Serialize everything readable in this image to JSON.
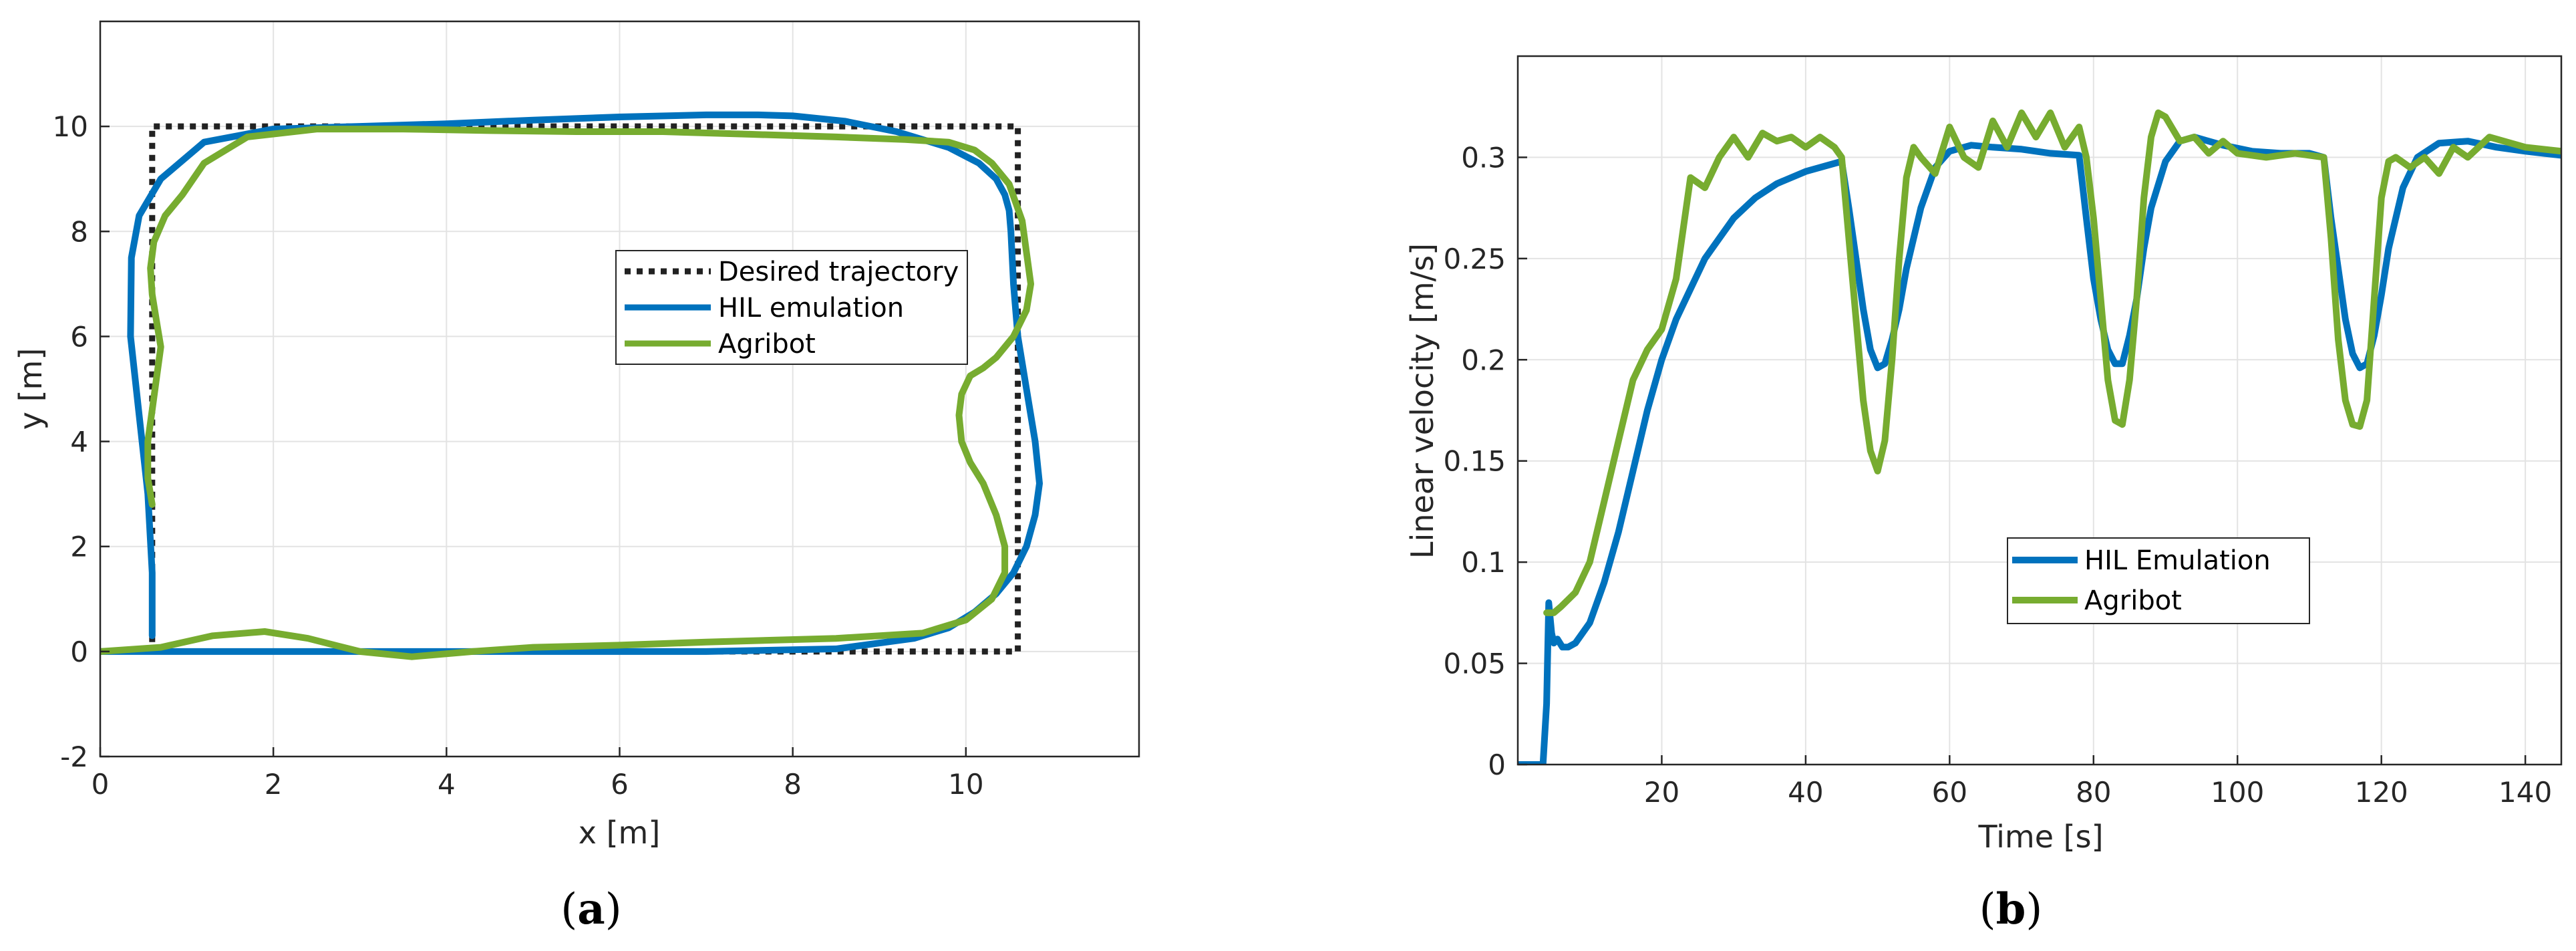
{
  "colors": {
    "desired": "#222222",
    "hil": "#0072bd",
    "agribot": "#77ac30",
    "grid": "#e3e3e3",
    "axis": "#262626"
  },
  "chart_data": [
    {
      "type": "line",
      "panel": "a",
      "caption_letter": "a",
      "xlabel": "x [m]",
      "ylabel": "y [m]",
      "xlim": [
        0,
        12
      ],
      "ylim": [
        -2,
        12
      ],
      "xticks": [
        0,
        2,
        4,
        6,
        8,
        10
      ],
      "yticks": [
        -2,
        0,
        2,
        4,
        6,
        8,
        10
      ],
      "grid": true,
      "legend_position": "center-right",
      "series": [
        {
          "name": "Desired trajectory",
          "style": "dotted",
          "color": "#222222",
          "x": [
            0.6,
            10.6,
            10.6,
            0.6,
            0.6
          ],
          "y": [
            0,
            0,
            10,
            10,
            0
          ]
        },
        {
          "name": "HIL emulation",
          "style": "solid",
          "color": "#0072bd",
          "x": [
            0.6,
            0.6,
            0.55,
            0.45,
            0.35,
            0.36,
            0.45,
            0.7,
            1.2,
            2.0,
            3.0,
            4.0,
            5.0,
            6.0,
            7.0,
            7.6,
            8.0,
            8.6,
            9.2,
            9.8,
            10.15,
            10.35,
            10.45,
            10.5,
            10.52,
            10.55,
            10.6,
            10.7,
            10.8,
            10.85,
            10.8,
            10.7,
            10.55,
            10.35,
            10.1,
            9.8,
            9.4,
            8.5,
            7.0,
            5.0,
            3.0,
            1.0,
            0.0
          ],
          "y": [
            0.3,
            1.5,
            3.0,
            4.5,
            6.0,
            7.5,
            8.3,
            9.0,
            9.7,
            9.95,
            10.0,
            10.05,
            10.12,
            10.18,
            10.22,
            10.22,
            10.2,
            10.1,
            9.9,
            9.6,
            9.3,
            9.0,
            8.7,
            8.4,
            8.0,
            7.0,
            6.0,
            5.0,
            4.0,
            3.2,
            2.6,
            2.0,
            1.5,
            1.1,
            0.75,
            0.45,
            0.25,
            0.05,
            0.0,
            0.0,
            0.0,
            0.0,
            0.0
          ]
        },
        {
          "name": "Agribot",
          "style": "solid",
          "color": "#77ac30",
          "x": [
            0.6,
            0.55,
            0.55,
            0.6,
            0.65,
            0.7,
            0.65,
            0.6,
            0.58,
            0.62,
            0.75,
            0.95,
            1.2,
            1.7,
            2.5,
            3.5,
            4.5,
            5.5,
            6.5,
            7.5,
            8.5,
            9.3,
            9.8,
            10.1,
            10.3,
            10.5,
            10.65,
            10.75,
            10.7,
            10.55,
            10.35,
            10.2,
            10.05,
            9.95,
            9.92,
            9.95,
            10.05,
            10.2,
            10.35,
            10.45,
            10.45,
            10.3,
            10.0,
            9.5,
            8.5,
            7.0,
            6.0,
            5.0,
            4.3,
            3.6,
            3.0,
            2.4,
            1.9,
            1.3,
            0.7,
            0.0
          ],
          "y": [
            2.8,
            3.3,
            4.0,
            4.6,
            5.2,
            5.8,
            6.3,
            6.8,
            7.3,
            7.8,
            8.3,
            8.7,
            9.3,
            9.8,
            9.95,
            9.95,
            9.92,
            9.9,
            9.9,
            9.85,
            9.8,
            9.75,
            9.7,
            9.55,
            9.3,
            8.9,
            8.2,
            7.0,
            6.5,
            6.0,
            5.6,
            5.4,
            5.25,
            4.9,
            4.5,
            4.0,
            3.6,
            3.2,
            2.6,
            2.0,
            1.5,
            1.0,
            0.6,
            0.35,
            0.25,
            0.18,
            0.12,
            0.08,
            0.0,
            -0.1,
            0.0,
            0.25,
            0.38,
            0.3,
            0.08,
            0.0
          ]
        }
      ]
    },
    {
      "type": "line",
      "panel": "b",
      "caption_letter": "b",
      "xlabel": "Time [s]",
      "ylabel": "Linear velocity [m/s]",
      "xlim": [
        0,
        145
      ],
      "ylim": [
        0,
        0.35
      ],
      "xticks": [
        20,
        40,
        60,
        80,
        100,
        120,
        140
      ],
      "yticks": [
        0,
        0.05,
        0.1,
        0.15,
        0.2,
        0.25,
        0.3
      ],
      "ytick_labels": [
        "0",
        "0.05",
        "0.1",
        "0.15",
        "0.2",
        "0.25",
        "0.3"
      ],
      "grid": true,
      "legend_position": "center-right",
      "series": [
        {
          "name": "HIL Emulation",
          "style": "solid",
          "color": "#0072bd",
          "x": [
            0,
            3.5,
            4.0,
            4.3,
            4.7,
            5.0,
            5.5,
            6.2,
            7.0,
            8.0,
            10,
            12,
            14,
            16,
            18,
            20,
            22,
            24,
            26,
            28,
            30,
            33,
            36,
            40,
            45,
            46,
            47,
            48,
            49,
            50,
            51,
            52,
            53,
            54,
            56,
            58,
            60,
            63,
            66,
            70,
            74,
            78,
            79,
            80,
            81,
            82,
            83,
            84,
            85,
            86,
            87,
            88,
            90,
            92,
            94,
            98,
            102,
            106,
            110,
            112,
            113,
            114,
            115,
            116,
            117,
            118,
            119,
            120,
            121,
            123,
            125,
            128,
            132,
            136,
            140,
            145
          ],
          "y": [
            0,
            0,
            0.03,
            0.08,
            0.065,
            0.06,
            0.062,
            0.058,
            0.058,
            0.06,
            0.07,
            0.09,
            0.115,
            0.145,
            0.175,
            0.2,
            0.22,
            0.235,
            0.25,
            0.26,
            0.27,
            0.28,
            0.287,
            0.293,
            0.298,
            0.275,
            0.25,
            0.225,
            0.205,
            0.196,
            0.198,
            0.21,
            0.225,
            0.245,
            0.275,
            0.295,
            0.303,
            0.306,
            0.305,
            0.304,
            0.302,
            0.301,
            0.27,
            0.24,
            0.22,
            0.205,
            0.198,
            0.198,
            0.212,
            0.23,
            0.255,
            0.275,
            0.298,
            0.308,
            0.31,
            0.306,
            0.303,
            0.302,
            0.302,
            0.3,
            0.27,
            0.245,
            0.22,
            0.203,
            0.196,
            0.198,
            0.212,
            0.232,
            0.255,
            0.285,
            0.3,
            0.307,
            0.308,
            0.305,
            0.303,
            0.301
          ]
        },
        {
          "name": "Agribot",
          "style": "solid",
          "color": "#77ac30",
          "x": [
            4,
            5,
            6,
            8,
            10,
            12,
            14,
            16,
            18,
            20,
            22,
            24,
            26,
            28,
            30,
            32,
            34,
            36,
            38,
            40,
            42,
            44,
            45,
            46,
            47,
            48,
            49,
            50,
            51,
            52,
            53,
            54,
            55,
            56,
            58,
            60,
            62,
            64,
            66,
            68,
            70,
            72,
            74,
            76,
            78,
            79,
            80,
            81,
            82,
            83,
            84,
            85,
            86,
            87,
            88,
            89,
            90,
            92,
            94,
            96,
            98,
            100,
            104,
            108,
            112,
            113,
            114,
            115,
            116,
            117,
            118,
            119,
            120,
            121,
            122,
            124,
            126,
            128,
            130,
            132,
            135,
            140,
            145
          ],
          "y": [
            0.075,
            0.075,
            0.078,
            0.085,
            0.1,
            0.13,
            0.16,
            0.19,
            0.205,
            0.215,
            0.24,
            0.29,
            0.285,
            0.3,
            0.31,
            0.3,
            0.312,
            0.308,
            0.31,
            0.305,
            0.31,
            0.305,
            0.3,
            0.26,
            0.22,
            0.18,
            0.155,
            0.145,
            0.16,
            0.2,
            0.25,
            0.29,
            0.305,
            0.3,
            0.292,
            0.315,
            0.3,
            0.295,
            0.318,
            0.305,
            0.322,
            0.31,
            0.322,
            0.305,
            0.315,
            0.3,
            0.27,
            0.23,
            0.19,
            0.17,
            0.168,
            0.19,
            0.23,
            0.28,
            0.31,
            0.322,
            0.32,
            0.308,
            0.31,
            0.302,
            0.308,
            0.302,
            0.3,
            0.302,
            0.3,
            0.26,
            0.21,
            0.18,
            0.168,
            0.167,
            0.18,
            0.23,
            0.28,
            0.298,
            0.3,
            0.295,
            0.3,
            0.292,
            0.305,
            0.3,
            0.31,
            0.305,
            0.303
          ]
        }
      ]
    }
  ]
}
